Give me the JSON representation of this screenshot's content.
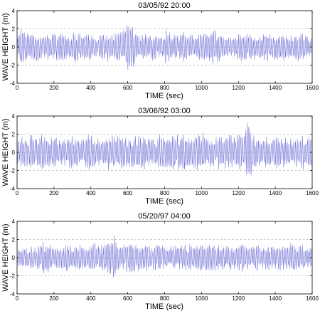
{
  "chart_data": [
    {
      "type": "line",
      "title": "03/05/92 20:00",
      "xlabel": "TIME (sec)",
      "ylabel": "WAVE HEIGHT (m)",
      "xlim": [
        0,
        1600
      ],
      "ylim": [
        -4,
        4
      ],
      "xticks": [
        "0",
        "200",
        "400",
        "600",
        "800",
        "1000",
        "1200",
        "1400",
        "1600"
      ],
      "yticks": [
        "-4",
        "-2",
        "0",
        "2",
        "4"
      ],
      "grid_y": [
        -2,
        0,
        2
      ],
      "grid_style": "dashed",
      "line_color": "#6f6fd6",
      "series": [
        {
          "x": [
            0,
            25,
            50,
            75,
            100,
            125,
            150,
            175,
            200,
            225,
            250,
            275,
            300,
            325,
            350,
            375,
            400,
            425,
            450,
            475,
            500,
            525,
            550,
            575,
            600,
            625,
            650,
            675,
            700,
            725,
            750,
            775,
            800,
            825,
            850,
            875,
            900,
            925,
            950,
            975,
            1000,
            1025,
            1050,
            1075,
            1100,
            1125,
            1150,
            1175,
            1200,
            1225,
            1250,
            1275,
            1300,
            1325,
            1350,
            1375,
            1400,
            1425,
            1450,
            1475,
            1500,
            1525,
            1550,
            1575,
            1600
          ],
          "envelope": [
            1.2,
            2.3,
            1.7,
            1.5,
            1.9,
            1.3,
            1.6,
            1.4,
            1.8,
            1.5,
            1.7,
            1.2,
            1.6,
            1.9,
            1.4,
            1.8,
            1.5,
            1.3,
            1.6,
            1.4,
            1.7,
            1.5,
            1.8,
            2.0,
            2.9,
            2.6,
            1.6,
            1.4,
            1.5,
            1.3,
            1.7,
            1.4,
            2.1,
            1.6,
            1.5,
            1.4,
            1.8,
            1.6,
            1.5,
            1.3,
            1.7,
            1.6,
            1.8,
            2.3,
            1.5,
            1.4,
            1.3,
            1.6,
            1.7,
            1.8,
            1.5,
            1.4,
            1.3,
            1.6,
            1.9,
            1.5,
            1.6,
            1.4,
            1.5,
            1.3,
            1.4,
            1.6,
            1.5,
            1.3,
            1.2
          ]
        }
      ]
    },
    {
      "type": "line",
      "title": "03/06/92 03:00",
      "xlabel": "TIME (sec)",
      "ylabel": "WAVE HEIGHT (m)",
      "xlim": [
        0,
        1600
      ],
      "ylim": [
        -4,
        4
      ],
      "xticks": [
        "0",
        "200",
        "400",
        "600",
        "800",
        "1000",
        "1200",
        "1400",
        "1600"
      ],
      "yticks": [
        "-4",
        "-2",
        "0",
        "2",
        "4"
      ],
      "grid_y": [
        -2,
        0,
        2
      ],
      "grid_style": "dashed",
      "line_color": "#6f6fd6",
      "series": [
        {
          "x": [
            0,
            25,
            50,
            75,
            100,
            125,
            150,
            175,
            200,
            225,
            250,
            275,
            300,
            325,
            350,
            375,
            400,
            425,
            450,
            475,
            500,
            525,
            550,
            575,
            600,
            625,
            650,
            675,
            700,
            725,
            750,
            775,
            800,
            825,
            850,
            875,
            900,
            925,
            950,
            975,
            1000,
            1025,
            1050,
            1075,
            1100,
            1125,
            1150,
            1175,
            1200,
            1225,
            1250,
            1275,
            1300,
            1325,
            1350,
            1375,
            1400,
            1425,
            1450,
            1475,
            1500,
            1525,
            1550,
            1575,
            1600
          ],
          "envelope": [
            1.4,
            1.9,
            1.8,
            2.0,
            1.6,
            1.8,
            2.1,
            1.7,
            1.9,
            1.6,
            1.5,
            1.8,
            2.0,
            1.7,
            1.6,
            1.9,
            2.3,
            1.8,
            1.7,
            1.9,
            2.1,
            1.8,
            2.0,
            1.9,
            1.8,
            1.7,
            2.0,
            1.8,
            1.9,
            1.6,
            2.0,
            2.1,
            1.9,
            1.8,
            2.2,
            2.3,
            2.0,
            1.9,
            1.7,
            2.1,
            2.4,
            2.0,
            1.9,
            1.8,
            2.1,
            1.9,
            2.2,
            1.8,
            2.3,
            2.0,
            3.8,
            2.4,
            2.0,
            1.8,
            1.9,
            1.7,
            1.8,
            1.9,
            1.7,
            1.8,
            1.9,
            1.7,
            2.0,
            1.8,
            1.6
          ]
        }
      ]
    },
    {
      "type": "line",
      "title": "05/20/97 04:00",
      "xlabel": "TIME (sec)",
      "ylabel": "WAVE HEIGHT (m)",
      "xlim": [
        0,
        1600
      ],
      "ylim": [
        -4,
        4
      ],
      "xticks": [
        "0",
        "200",
        "400",
        "600",
        "800",
        "1000",
        "1200",
        "1400",
        "1600"
      ],
      "yticks": [
        "-4",
        "-2",
        "0",
        "2",
        "4"
      ],
      "grid_y": [
        -2,
        0,
        2
      ],
      "grid_style": "dashed",
      "line_color": "#6f6fd6",
      "series": [
        {
          "x": [
            0,
            25,
            50,
            75,
            100,
            125,
            150,
            175,
            200,
            225,
            250,
            275,
            300,
            325,
            350,
            375,
            400,
            425,
            450,
            475,
            500,
            525,
            550,
            575,
            600,
            625,
            650,
            675,
            700,
            725,
            750,
            775,
            800,
            825,
            850,
            875,
            900,
            925,
            950,
            975,
            1000,
            1025,
            1050,
            1075,
            1100,
            1125,
            1150,
            1175,
            1200,
            1225,
            1250,
            1275,
            1300,
            1325,
            1350,
            1375,
            1400,
            1425,
            1450,
            1475,
            1500,
            1525,
            1550,
            1575,
            1600
          ],
          "envelope": [
            1.0,
            1.3,
            1.1,
            1.4,
            1.2,
            1.5,
            2.0,
            1.6,
            1.3,
            1.2,
            1.4,
            1.5,
            1.3,
            1.6,
            1.4,
            1.2,
            1.5,
            1.7,
            1.4,
            1.6,
            2.0,
            2.8,
            1.6,
            1.5,
            1.7,
            1.8,
            1.5,
            1.4,
            1.6,
            1.3,
            1.7,
            1.5,
            1.6,
            1.4,
            1.3,
            1.6,
            1.5,
            1.7,
            1.4,
            1.5,
            1.6,
            1.5,
            2.0,
            1.6,
            1.5,
            1.4,
            1.6,
            1.3,
            1.5,
            1.7,
            1.5,
            1.4,
            1.6,
            1.3,
            1.5,
            1.4,
            1.3,
            1.5,
            1.4,
            1.6,
            1.8,
            1.3,
            1.5,
            1.2,
            1.1
          ]
        }
      ]
    }
  ]
}
